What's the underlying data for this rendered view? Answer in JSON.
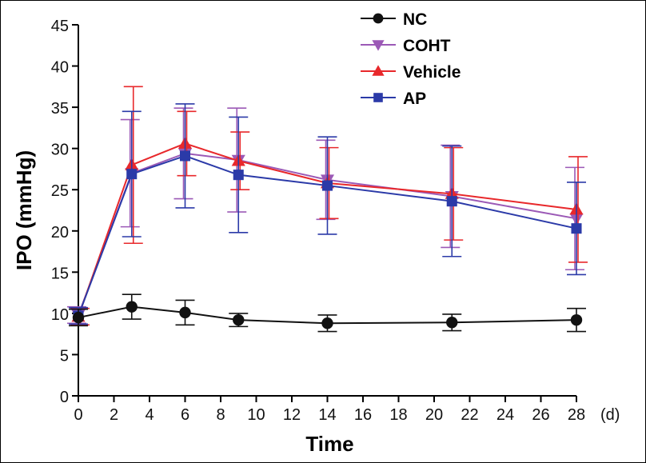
{
  "chart_data": {
    "type": "line",
    "xlabel": "Time",
    "ylabel": "IPO (mmHg)",
    "x_unit": "(d)",
    "xlim": [
      0,
      28
    ],
    "ylim": [
      0,
      45
    ],
    "x_ticks": [
      0,
      2,
      4,
      6,
      8,
      10,
      12,
      14,
      16,
      18,
      20,
      22,
      24,
      26,
      28
    ],
    "y_ticks": [
      0,
      5,
      10,
      15,
      20,
      25,
      30,
      35,
      40,
      45
    ],
    "legend_position": "top-right",
    "grid": false,
    "x": [
      0,
      3,
      6,
      9,
      14,
      21,
      28
    ],
    "series": [
      {
        "name": "NC",
        "marker": "circle",
        "color": "#111111",
        "values": [
          9.5,
          10.8,
          10.1,
          9.2,
          8.8,
          8.9,
          9.2
        ],
        "error": [
          1.0,
          1.5,
          1.5,
          0.8,
          1.0,
          1.0,
          1.4
        ]
      },
      {
        "name": "COHT",
        "marker": "triangle-down",
        "color": "#9b59b6",
        "values": [
          9.8,
          27.0,
          29.4,
          28.6,
          26.2,
          24.2,
          21.5
        ],
        "error": [
          1.0,
          6.5,
          5.5,
          6.3,
          4.8,
          6.2,
          6.2
        ]
      },
      {
        "name": "Vehicle",
        "marker": "triangle-up",
        "color": "#e8282b",
        "values": [
          9.6,
          28.0,
          30.6,
          28.5,
          25.8,
          24.5,
          22.6
        ],
        "error": [
          1.0,
          9.5,
          3.9,
          3.5,
          4.3,
          5.6,
          6.4
        ]
      },
      {
        "name": "AP",
        "marker": "square",
        "color": "#2b3aa8",
        "values": [
          9.7,
          26.9,
          29.1,
          26.8,
          25.5,
          23.6,
          20.3
        ],
        "error": [
          1.0,
          7.6,
          6.3,
          7.0,
          5.9,
          6.7,
          5.6
        ]
      }
    ]
  }
}
